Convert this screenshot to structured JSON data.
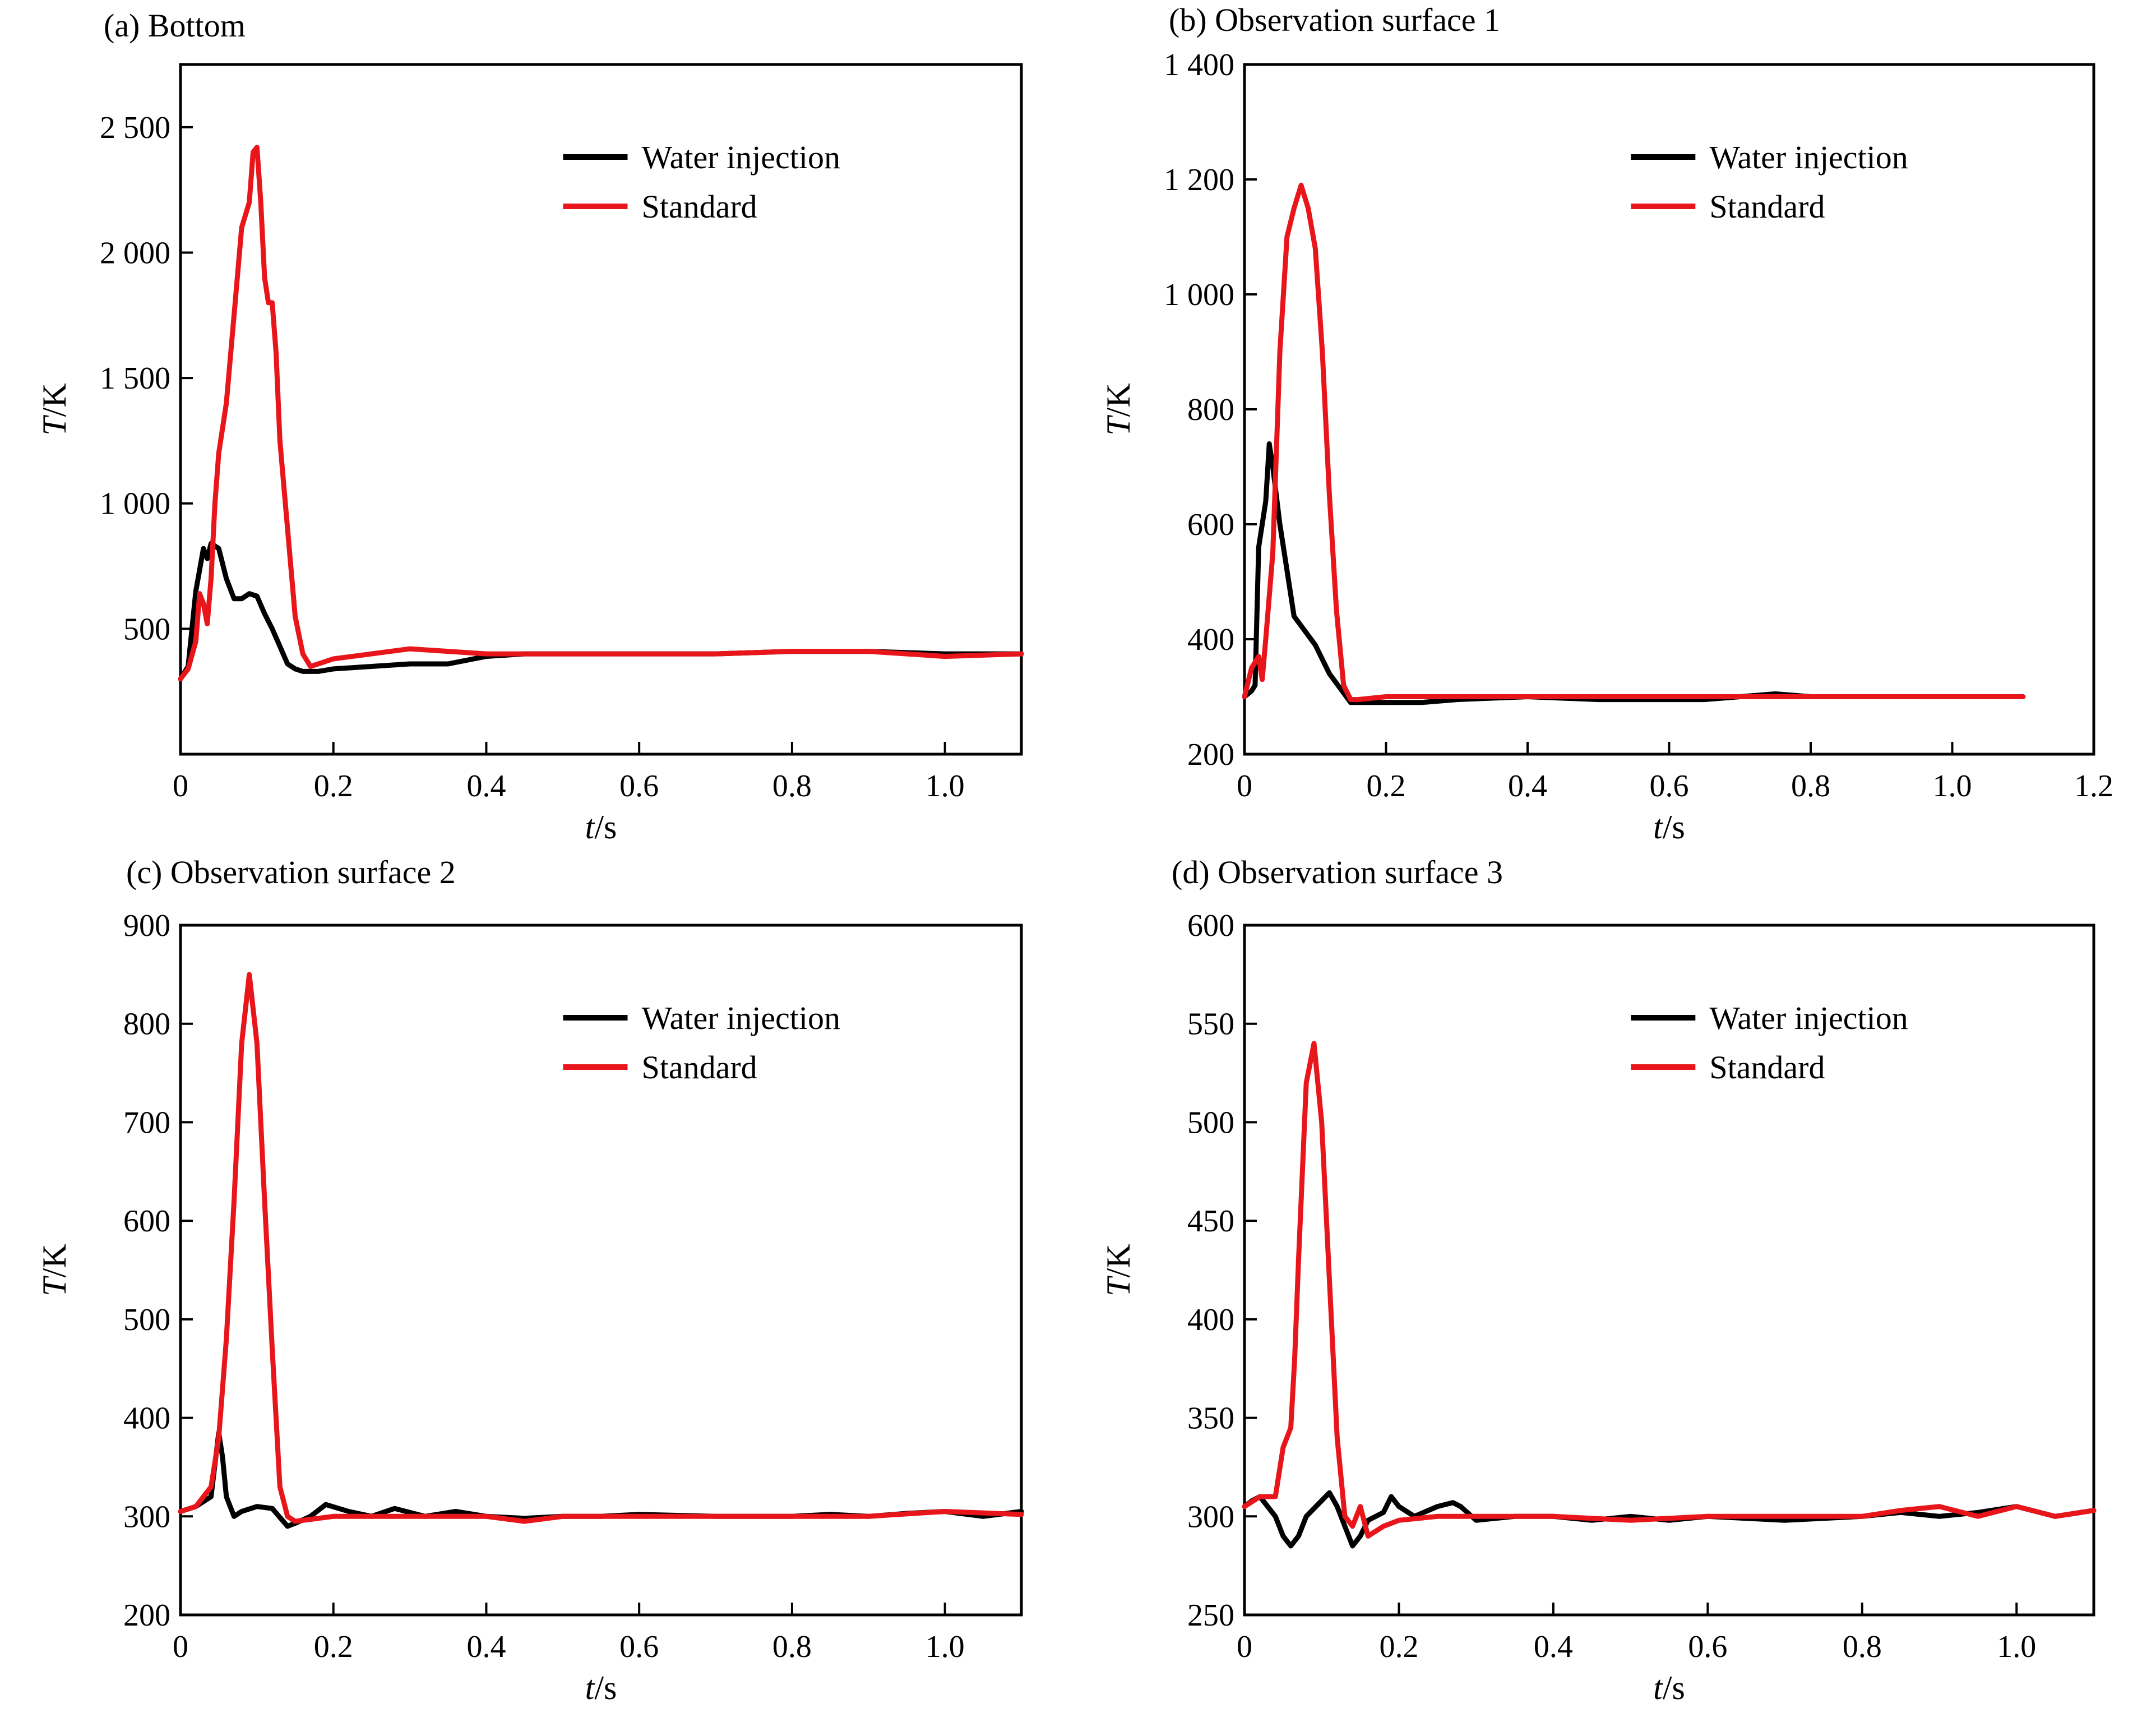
{
  "figure": {
    "panels": [
      {
        "id": "a",
        "title": "(a) Bottom"
      },
      {
        "id": "b",
        "title": "(b) Observation surface 1"
      },
      {
        "id": "c",
        "title": "(c) Observation surface 2"
      },
      {
        "id": "d",
        "title": "(d) Observation surface 3"
      }
    ]
  },
  "colors": {
    "water_injection": "#000000",
    "standard": "#e8161b"
  },
  "chart_data": [
    {
      "type": "line",
      "title": "(a) Bottom",
      "xlabel": "t/s",
      "ylabel": "T/K",
      "xlim": [
        0,
        1.1
      ],
      "ylim": [
        0,
        2750
      ],
      "xticks": [
        0,
        0.2,
        0.4,
        0.6,
        0.8,
        1.0
      ],
      "xtick_labels": [
        "0",
        "0.2",
        "0.4",
        "0.6",
        "0.8",
        "1.0"
      ],
      "yticks": [
        500,
        1000,
        1500,
        2000,
        2500
      ],
      "ytick_labels": [
        "500",
        "1 000",
        "1 500",
        "2 000",
        "2 500"
      ],
      "legend_position": "top-right",
      "grid": false,
      "series": [
        {
          "name": "Water injection",
          "color": "#000000",
          "x": [
            0,
            0.01,
            0.02,
            0.03,
            0.035,
            0.04,
            0.05,
            0.06,
            0.07,
            0.08,
            0.09,
            0.1,
            0.11,
            0.12,
            0.13,
            0.14,
            0.15,
            0.16,
            0.18,
            0.2,
            0.25,
            0.3,
            0.35,
            0.4,
            0.45,
            0.5,
            0.6,
            0.7,
            0.8,
            0.9,
            1.0,
            1.1
          ],
          "y": [
            300,
            350,
            650,
            820,
            780,
            840,
            820,
            700,
            620,
            620,
            640,
            630,
            560,
            500,
            430,
            360,
            340,
            330,
            330,
            340,
            350,
            360,
            360,
            390,
            400,
            400,
            400,
            400,
            410,
            410,
            400,
            400
          ]
        },
        {
          "name": "Standard",
          "color": "#e8161b",
          "x": [
            0,
            0.01,
            0.02,
            0.025,
            0.03,
            0.035,
            0.04,
            0.045,
            0.05,
            0.06,
            0.07,
            0.08,
            0.09,
            0.095,
            0.1,
            0.105,
            0.11,
            0.115,
            0.12,
            0.125,
            0.13,
            0.14,
            0.15,
            0.16,
            0.17,
            0.18,
            0.2,
            0.25,
            0.3,
            0.35,
            0.4,
            0.5,
            0.6,
            0.7,
            0.8,
            0.9,
            1.0,
            1.1
          ],
          "y": [
            300,
            340,
            450,
            640,
            600,
            520,
            700,
            1000,
            1200,
            1400,
            1750,
            2100,
            2200,
            2400,
            2420,
            2200,
            1900,
            1800,
            1800,
            1600,
            1250,
            900,
            550,
            400,
            350,
            360,
            380,
            400,
            420,
            410,
            400,
            400,
            400,
            400,
            410,
            410,
            390,
            400
          ]
        }
      ]
    },
    {
      "type": "line",
      "title": "(b) Observation surface 1",
      "xlabel": "t/s",
      "ylabel": "T/K",
      "xlim": [
        0,
        1.2
      ],
      "ylim": [
        200,
        1400
      ],
      "xticks": [
        0,
        0.2,
        0.4,
        0.6,
        0.8,
        1.0,
        1.2
      ],
      "xtick_labels": [
        "0",
        "0.2",
        "0.4",
        "0.6",
        "0.8",
        "1.0",
        "1.2"
      ],
      "yticks": [
        200,
        400,
        600,
        800,
        1000,
        1200,
        1400
      ],
      "ytick_labels": [
        "200",
        "400",
        "600",
        "800",
        "1 000",
        "1 200",
        "1 400"
      ],
      "legend_position": "top-right",
      "grid": false,
      "series": [
        {
          "name": "Water injection",
          "color": "#000000",
          "x": [
            0,
            0.01,
            0.015,
            0.02,
            0.025,
            0.03,
            0.035,
            0.04,
            0.05,
            0.06,
            0.07,
            0.1,
            0.12,
            0.15,
            0.2,
            0.25,
            0.3,
            0.4,
            0.5,
            0.6,
            0.65,
            0.7,
            0.75,
            0.8,
            0.9,
            1.0,
            1.1
          ],
          "y": [
            300,
            310,
            320,
            560,
            600,
            640,
            740,
            700,
            600,
            520,
            440,
            390,
            340,
            290,
            290,
            290,
            295,
            300,
            295,
            295,
            295,
            300,
            305,
            300,
            300,
            300,
            300
          ]
        },
        {
          "name": "Standard",
          "color": "#e8161b",
          "x": [
            0,
            0.01,
            0.02,
            0.025,
            0.03,
            0.04,
            0.05,
            0.06,
            0.07,
            0.08,
            0.09,
            0.1,
            0.11,
            0.12,
            0.13,
            0.14,
            0.15,
            0.16,
            0.2,
            0.3,
            0.4,
            0.5,
            0.6,
            0.7,
            0.8,
            0.9,
            1.0,
            1.1
          ],
          "y": [
            300,
            350,
            370,
            330,
            400,
            550,
            900,
            1100,
            1150,
            1190,
            1150,
            1080,
            900,
            650,
            450,
            320,
            295,
            295,
            300,
            300,
            300,
            300,
            300,
            300,
            300,
            300,
            300,
            300
          ]
        }
      ]
    },
    {
      "type": "line",
      "title": "(c) Observation surface 2",
      "xlabel": "t/s",
      "ylabel": "T/K",
      "xlim": [
        0,
        1.1
      ],
      "ylim": [
        200,
        900
      ],
      "xticks": [
        0,
        0.2,
        0.4,
        0.6,
        0.8,
        1.0
      ],
      "xtick_labels": [
        "0",
        "0.2",
        "0.4",
        "0.6",
        "0.8",
        "1.0"
      ],
      "yticks": [
        200,
        300,
        400,
        500,
        600,
        700,
        800,
        900
      ],
      "ytick_labels": [
        "200",
        "300",
        "400",
        "500",
        "600",
        "700",
        "800",
        "900"
      ],
      "legend_position": "top-right",
      "grid": false,
      "series": [
        {
          "name": "Water injection",
          "color": "#000000",
          "x": [
            0,
            0.02,
            0.04,
            0.05,
            0.055,
            0.06,
            0.07,
            0.08,
            0.1,
            0.12,
            0.14,
            0.15,
            0.17,
            0.19,
            0.22,
            0.25,
            0.28,
            0.32,
            0.36,
            0.4,
            0.45,
            0.5,
            0.55,
            0.6,
            0.7,
            0.8,
            0.85,
            0.9,
            0.95,
            1.0,
            1.05,
            1.1
          ],
          "y": [
            305,
            310,
            320,
            385,
            360,
            320,
            300,
            305,
            310,
            308,
            290,
            293,
            300,
            312,
            305,
            300,
            308,
            300,
            305,
            300,
            298,
            300,
            300,
            302,
            300,
            300,
            302,
            300,
            303,
            305,
            300,
            305
          ]
        },
        {
          "name": "Standard",
          "color": "#e8161b",
          "x": [
            0,
            0.02,
            0.04,
            0.05,
            0.06,
            0.07,
            0.08,
            0.09,
            0.1,
            0.11,
            0.12,
            0.13,
            0.14,
            0.15,
            0.2,
            0.3,
            0.4,
            0.45,
            0.5,
            0.6,
            0.7,
            0.8,
            0.9,
            1.0,
            1.1
          ],
          "y": [
            305,
            310,
            330,
            380,
            480,
            620,
            780,
            850,
            780,
            620,
            470,
            330,
            300,
            295,
            300,
            300,
            300,
            295,
            300,
            300,
            300,
            300,
            300,
            305,
            302
          ]
        }
      ]
    },
    {
      "type": "line",
      "title": "(d) Observation surface 3",
      "xlabel": "t/s",
      "ylabel": "T/K",
      "xlim": [
        0,
        1.1
      ],
      "ylim": [
        250,
        600
      ],
      "xticks": [
        0,
        0.2,
        0.4,
        0.6,
        0.8,
        1.0
      ],
      "xtick_labels": [
        "0",
        "0.2",
        "0.4",
        "0.6",
        "0.8",
        "1.0"
      ],
      "yticks": [
        250,
        300,
        350,
        400,
        450,
        500,
        550,
        600
      ],
      "ytick_labels": [
        "250",
        "300",
        "350",
        "400",
        "450",
        "500",
        "550",
        "600"
      ],
      "legend_position": "top-right",
      "grid": false,
      "series": [
        {
          "name": "Water injection",
          "color": "#000000",
          "x": [
            0,
            0.01,
            0.02,
            0.03,
            0.04,
            0.05,
            0.06,
            0.07,
            0.08,
            0.1,
            0.11,
            0.12,
            0.13,
            0.14,
            0.15,
            0.16,
            0.18,
            0.19,
            0.2,
            0.22,
            0.25,
            0.27,
            0.28,
            0.3,
            0.35,
            0.4,
            0.45,
            0.5,
            0.55,
            0.6,
            0.7,
            0.8,
            0.85,
            0.9,
            0.95,
            1.0,
            1.05,
            1.1
          ],
          "y": [
            305,
            308,
            310,
            305,
            300,
            290,
            285,
            290,
            300,
            308,
            312,
            305,
            295,
            285,
            290,
            298,
            302,
            310,
            305,
            300,
            305,
            307,
            305,
            298,
            300,
            300,
            298,
            300,
            298,
            300,
            298,
            300,
            302,
            300,
            302,
            305,
            300,
            303
          ]
        },
        {
          "name": "Standard",
          "color": "#e8161b",
          "x": [
            0,
            0.02,
            0.04,
            0.05,
            0.06,
            0.065,
            0.07,
            0.08,
            0.09,
            0.1,
            0.11,
            0.12,
            0.13,
            0.14,
            0.15,
            0.16,
            0.18,
            0.2,
            0.25,
            0.3,
            0.4,
            0.5,
            0.6,
            0.7,
            0.8,
            0.85,
            0.9,
            0.95,
            1.0,
            1.05,
            1.1
          ],
          "y": [
            305,
            310,
            310,
            335,
            345,
            380,
            430,
            520,
            540,
            500,
            420,
            340,
            300,
            295,
            305,
            290,
            295,
            298,
            300,
            300,
            300,
            298,
            300,
            300,
            300,
            303,
            305,
            300,
            305,
            300,
            303
          ]
        }
      ]
    }
  ]
}
